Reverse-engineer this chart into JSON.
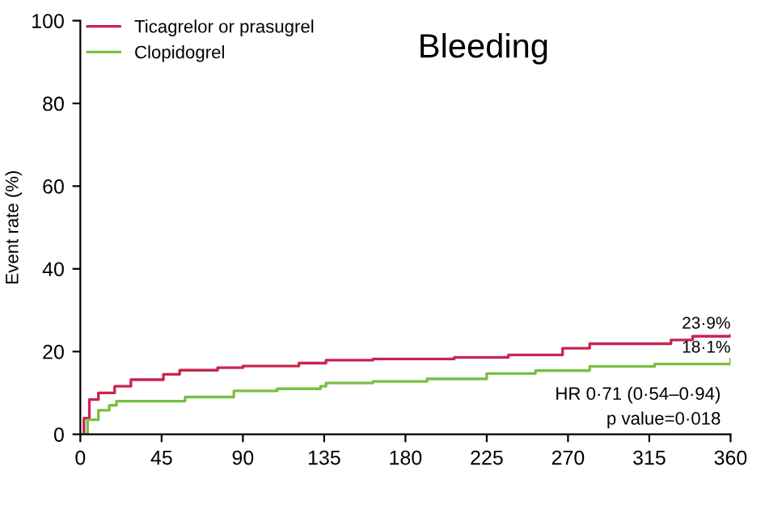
{
  "chart_data": {
    "type": "step",
    "title": "Bleeding",
    "ylabel": "Event rate (%)",
    "xlim": [
      0,
      360
    ],
    "xticks": [
      0,
      45,
      90,
      135,
      180,
      225,
      270,
      315,
      360
    ],
    "ylim": [
      0,
      100
    ],
    "yticks": [
      0,
      20,
      40,
      60,
      80,
      100
    ],
    "grid": false,
    "legend": "top left",
    "series": [
      {
        "name": "Ticagrelor or prasugrel",
        "color": "#c8254f",
        "x": [
          0,
          2,
          5,
          10,
          19,
          28,
          46,
          55,
          76,
          90,
          121,
          136,
          162,
          207,
          237,
          267,
          282,
          327,
          339,
          360
        ],
        "values": [
          0,
          3.9,
          8.4,
          10,
          11.6,
          13.2,
          14.5,
          15.5,
          16.1,
          16.5,
          17.2,
          17.9,
          18.2,
          18.6,
          19.2,
          20.8,
          21.9,
          22.8,
          23.7,
          23.9
        ]
      },
      {
        "name": "Clopidogrel",
        "color": "#78c043",
        "x": [
          0,
          4,
          10,
          16,
          20,
          46,
          58,
          70,
          85,
          109,
          133,
          136,
          162,
          192,
          225,
          252,
          282,
          318,
          360
        ],
        "values": [
          0,
          3.5,
          5.8,
          7,
          8,
          8,
          9,
          9,
          10.5,
          11,
          11.6,
          12.4,
          12.8,
          13.4,
          14.7,
          15.4,
          16.4,
          17,
          18.1
        ]
      }
    ],
    "annotations": [
      {
        "text": "23·9%",
        "x": 360,
        "y": 23.9
      },
      {
        "text": "18·1%",
        "x": 360,
        "y": 18.1
      },
      "HR 0·71 (0·54–0·94)",
      "p value=0·018"
    ]
  }
}
